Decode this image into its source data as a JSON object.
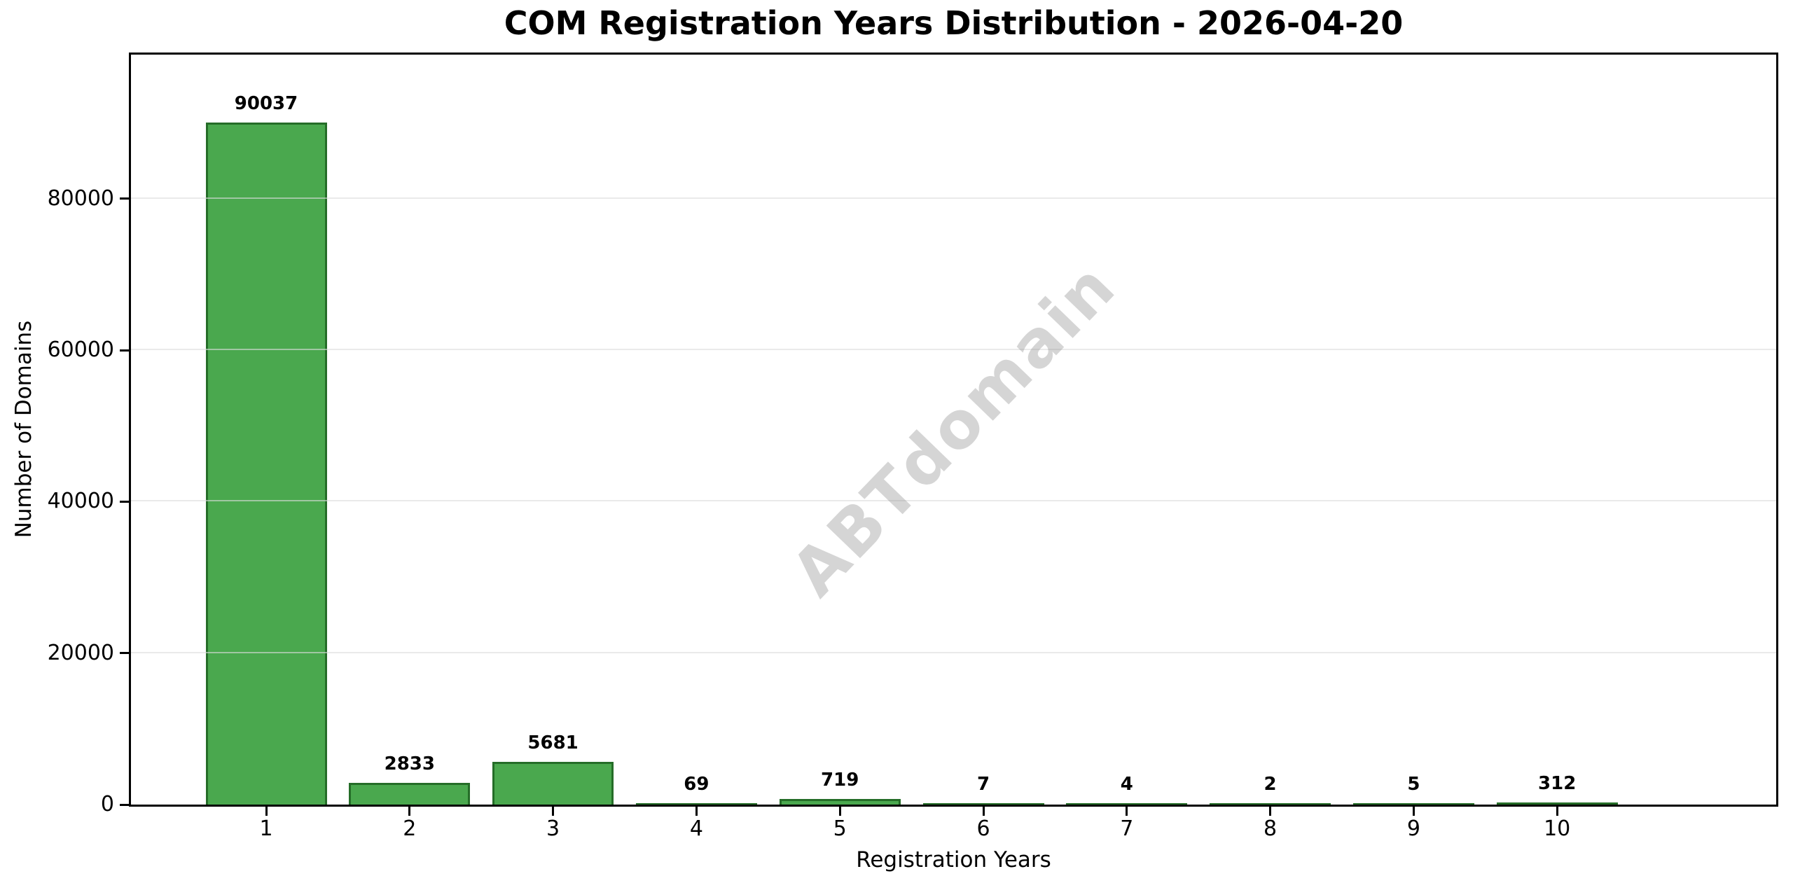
{
  "chart_data": {
    "type": "bar",
    "title": "COM Registration Years Distribution - 2026-04-20",
    "categories": [
      "1",
      "2",
      "3",
      "4",
      "5",
      "6",
      "7",
      "8",
      "9",
      "10"
    ],
    "values": [
      90037,
      2833,
      5681,
      69,
      719,
      7,
      4,
      2,
      5,
      312
    ],
    "value_labels": [
      "90037",
      "2833",
      "5681",
      "69",
      "719",
      "7",
      "4",
      "2",
      "5",
      "312"
    ],
    "xlabel": "Registration Years",
    "ylabel": "Number of Domains",
    "ylim": [
      0,
      99040
    ],
    "yticks": [
      0,
      20000,
      40000,
      60000,
      80000
    ],
    "ytick_labels": [
      "0",
      "20000",
      "40000",
      "60000",
      "80000"
    ],
    "grid": "horizontal",
    "legend": "none",
    "watermark": "ABTdomain",
    "colors": {
      "bar_fill": "#4aa84e",
      "bar_edge": "#256d28",
      "gridline": "#dcdcdc",
      "spine": "#000000",
      "watermark": "rgba(127,127,127,0.33)",
      "background": "#ffffff"
    }
  }
}
